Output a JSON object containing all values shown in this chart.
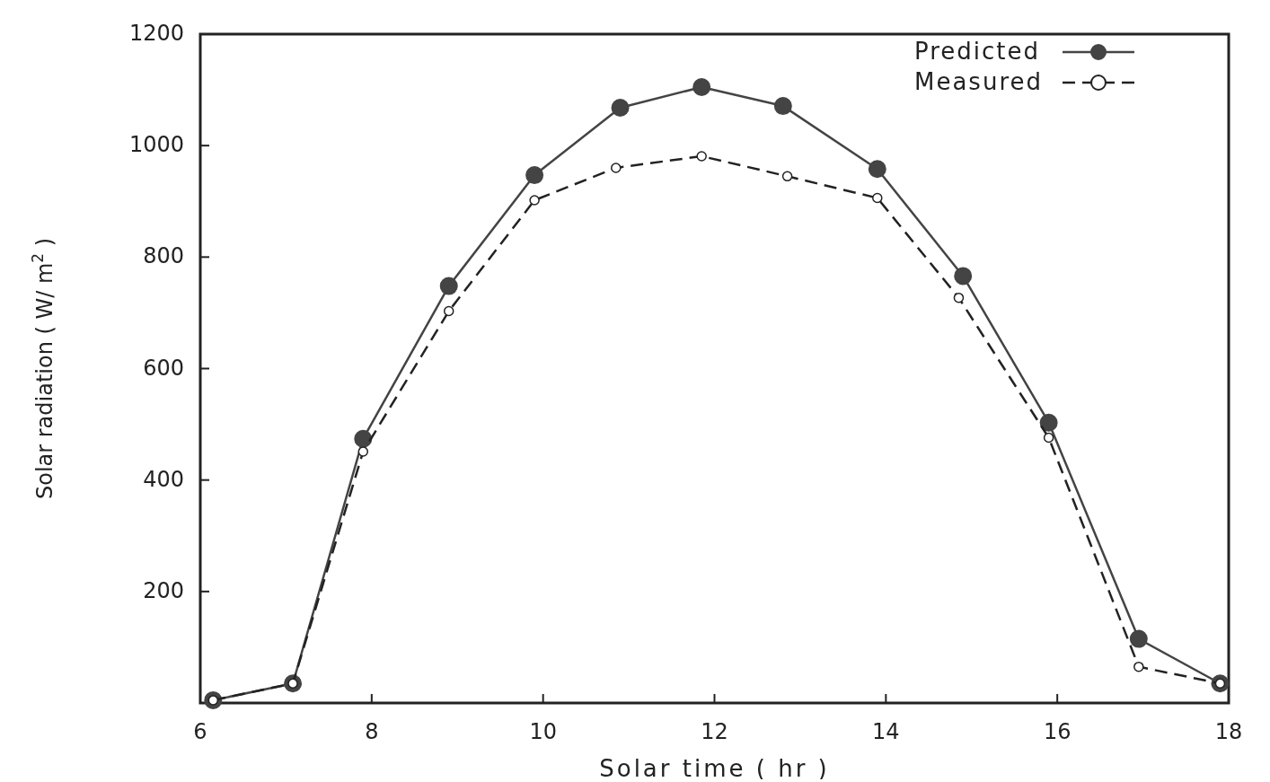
{
  "chart_data": {
    "type": "line",
    "xlabel": "Solar time ( hr )",
    "ylabel": "Solar radiation ( W/ m$^{2}$ )",
    "xlim": [
      6,
      18
    ],
    "xticks": [
      6,
      8,
      10,
      12,
      14,
      16,
      18
    ],
    "ylim": [
      0,
      1200
    ],
    "yticks": [
      200,
      400,
      600,
      800,
      1000,
      1200
    ],
    "grid": false,
    "legend": "top right",
    "marker": "circle",
    "series": [
      {
        "name": "Predicted",
        "color": "#444444",
        "line_style": "solid",
        "x": [
          6.15,
          7.08,
          7.9,
          8.9,
          9.9,
          10.9,
          11.85,
          12.8,
          13.9,
          14.9,
          15.9,
          16.95,
          17.9
        ],
        "values": [
          5,
          35,
          474,
          748,
          947,
          1068,
          1105,
          1071,
          958,
          766,
          503,
          115,
          35
        ]
      },
      {
        "name": "Measured",
        "color": "#222222",
        "line_style": "dashed",
        "x": [
          6.15,
          7.08,
          7.9,
          8.9,
          9.9,
          10.85,
          11.85,
          12.85,
          13.9,
          14.85,
          15.9,
          16.95,
          17.9
        ],
        "values": [
          5,
          35,
          451,
          703,
          902,
          960,
          981,
          945,
          906,
          727,
          476,
          65,
          35
        ]
      }
    ]
  }
}
